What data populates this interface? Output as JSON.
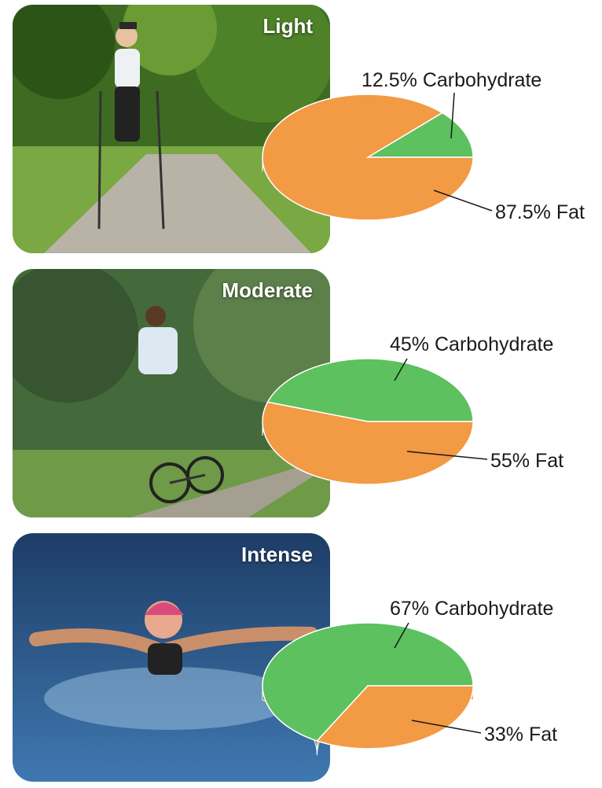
{
  "chart_data": [
    {
      "type": "pie",
      "title": "Light",
      "slices": [
        {
          "label": "12.5% Carbohydrate",
          "value": 12.5,
          "color": "#5cc15e"
        },
        {
          "label": "87.5% Fat",
          "value": 87.5,
          "color": "#f39a44"
        }
      ]
    },
    {
      "type": "pie",
      "title": "Moderate",
      "slices": [
        {
          "label": "45% Carbohydrate",
          "value": 45,
          "color": "#5cc15e"
        },
        {
          "label": "55% Fat",
          "value": 55,
          "color": "#f39a44"
        }
      ]
    },
    {
      "type": "pie",
      "title": "Intense",
      "slices": [
        {
          "label": "67% Carbohydrate",
          "value": 67,
          "color": "#5cc15e"
        },
        {
          "label": "33% Fat",
          "value": 33,
          "color": "#f39a44"
        }
      ]
    }
  ],
  "photos": [
    {
      "scene": "walking-with-poles-on-park-path"
    },
    {
      "scene": "cycling-on-park-path"
    },
    {
      "scene": "swimming-butterfly-stroke"
    }
  ],
  "colors": {
    "carbohydrate": "#5cc15e",
    "fat": "#f39a44",
    "carbohydrate_side": "#3f9a43",
    "fat_side": "#d27a25"
  }
}
